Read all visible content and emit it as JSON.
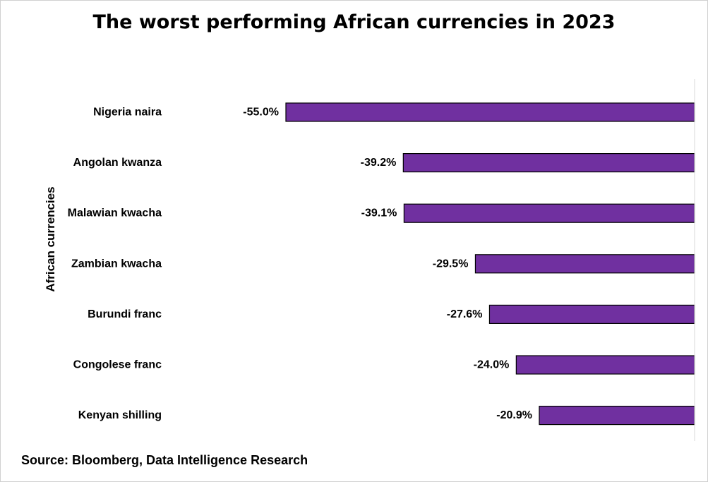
{
  "chart_data": {
    "type": "bar",
    "orientation": "horizontal",
    "title": "The worst performing African currencies in 2023",
    "ylabel": "African currencies",
    "xlabel": "",
    "categories": [
      "Nigeria naira",
      "Angolan kwanza",
      "Malawian kwacha",
      "Zambian kwacha",
      "Burundi franc",
      "Congolese franc",
      "Kenyan shilling"
    ],
    "values": [
      -55.0,
      -39.2,
      -39.1,
      -29.5,
      -27.6,
      -24.0,
      -20.9
    ],
    "data_labels": [
      "-55.0%",
      "-39.2%",
      "-39.1%",
      "-29.5%",
      "-27.6%",
      "-24.0%",
      "-20.9%"
    ],
    "unit": "%",
    "bar_color": "#7030a0",
    "bar_border": "#000000",
    "xlim": [
      -55.0,
      0
    ],
    "grid": false,
    "legend": "none"
  },
  "source": "Source: Bloomberg, Data Intelligence Research"
}
